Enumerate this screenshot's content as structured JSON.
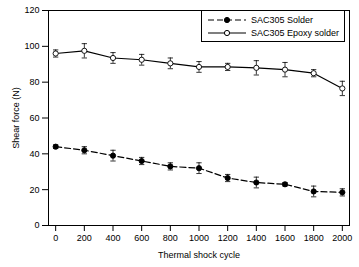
{
  "chart_data": {
    "type": "line",
    "x_label": "Thermal shock cycle",
    "y_label": "Shear force (N)",
    "x": [
      0,
      200,
      400,
      600,
      800,
      1000,
      1200,
      1400,
      1600,
      1800,
      2000
    ],
    "series": [
      {
        "name": "SAC305 Solder",
        "color": "#000000",
        "marker": "circle",
        "line_style": "dashed",
        "values": [
          44,
          42,
          39,
          36,
          33,
          32,
          26.5,
          24,
          23,
          19,
          18.5
        ],
        "error": [
          1,
          2,
          3,
          2,
          2,
          3,
          2,
          3,
          1,
          3,
          2
        ]
      },
      {
        "name": "SAC305 Epoxy solder",
        "color": "#000000",
        "marker": "circle_open",
        "line_style": "solid",
        "values": [
          96,
          97.5,
          93.5,
          92.5,
          90.5,
          88.5,
          88.5,
          88,
          87,
          85,
          76.5
        ],
        "error": [
          2,
          4,
          3,
          3,
          3,
          3,
          2,
          4,
          4,
          2,
          4
        ]
      }
    ],
    "xlim": [
      -50,
      2050
    ],
    "xticks": [
      0,
      200,
      400,
      600,
      800,
      1000,
      1200,
      1400,
      1600,
      1800,
      2000
    ],
    "ylim": [
      0,
      120
    ],
    "yticks": [
      0,
      20,
      40,
      60,
      80,
      100,
      120
    ],
    "grid": false,
    "legend": "upper right"
  }
}
